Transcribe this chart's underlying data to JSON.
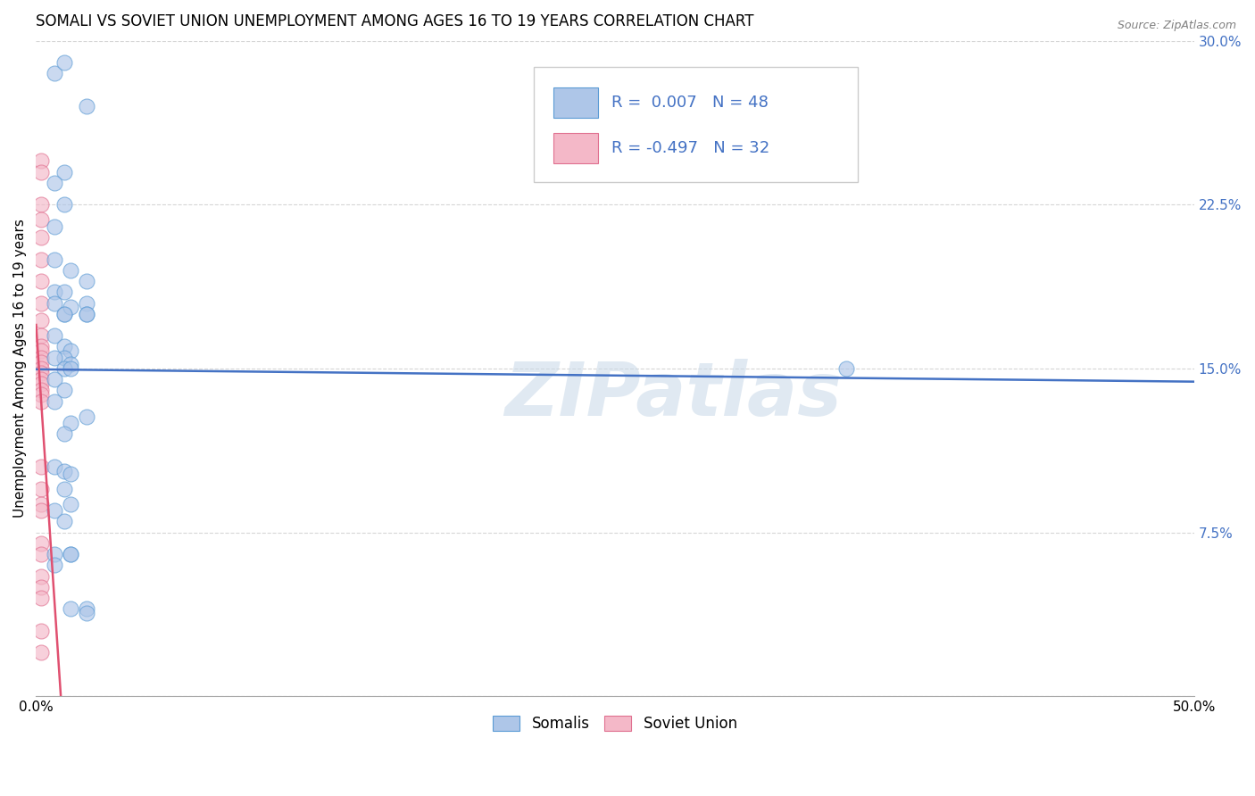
{
  "title": "SOMALI VS SOVIET UNION UNEMPLOYMENT AMONG AGES 16 TO 19 YEARS CORRELATION CHART",
  "source": "Source: ZipAtlas.com",
  "ylabel": "Unemployment Among Ages 16 to 19 years",
  "xlim": [
    0.0,
    0.5
  ],
  "ylim": [
    0.0,
    0.3
  ],
  "xticks": [
    0.0,
    0.1,
    0.2,
    0.3,
    0.4,
    0.5
  ],
  "xticklabels": [
    "0.0%",
    "",
    "",
    "",
    "",
    "50.0%"
  ],
  "yticks_left": [
    0.0,
    0.075,
    0.15,
    0.225,
    0.3
  ],
  "yticklabels_left": [
    "",
    "",
    "",
    "",
    ""
  ],
  "yticks_right": [
    0.075,
    0.15,
    0.225,
    0.3
  ],
  "yticklabels_right": [
    "7.5%",
    "15.0%",
    "22.5%",
    "30.0%"
  ],
  "somali_color": "#aec6e8",
  "somali_edge_color": "#5b9bd5",
  "soviet_color": "#f4b8c8",
  "soviet_edge_color": "#e07090",
  "trend_somali_color": "#4472c4",
  "trend_soviet_color": "#e05070",
  "watermark": "ZIPatlas",
  "somali_x": [
    0.008,
    0.012,
    0.022,
    0.012,
    0.008,
    0.008,
    0.012,
    0.008,
    0.015,
    0.022,
    0.008,
    0.012,
    0.022,
    0.008,
    0.012,
    0.015,
    0.012,
    0.022,
    0.008,
    0.012,
    0.015,
    0.012,
    0.015,
    0.022,
    0.008,
    0.012,
    0.015,
    0.008,
    0.012,
    0.008,
    0.015,
    0.012,
    0.008,
    0.012,
    0.015,
    0.022,
    0.012,
    0.015,
    0.008,
    0.012,
    0.008,
    0.015,
    0.022,
    0.015,
    0.022,
    0.008,
    0.35,
    0.015
  ],
  "somali_y": [
    0.285,
    0.29,
    0.27,
    0.24,
    0.235,
    0.215,
    0.225,
    0.2,
    0.195,
    0.19,
    0.185,
    0.185,
    0.18,
    0.18,
    0.175,
    0.178,
    0.175,
    0.175,
    0.165,
    0.16,
    0.158,
    0.155,
    0.152,
    0.175,
    0.155,
    0.15,
    0.15,
    0.145,
    0.14,
    0.135,
    0.125,
    0.12,
    0.105,
    0.103,
    0.102,
    0.128,
    0.095,
    0.088,
    0.085,
    0.08,
    0.065,
    0.065,
    0.04,
    0.04,
    0.038,
    0.06,
    0.15,
    0.065
  ],
  "soviet_x": [
    0.002,
    0.002,
    0.002,
    0.002,
    0.002,
    0.002,
    0.002,
    0.002,
    0.002,
    0.002,
    0.002,
    0.002,
    0.002,
    0.002,
    0.002,
    0.002,
    0.002,
    0.002,
    0.002,
    0.002,
    0.002,
    0.002,
    0.002,
    0.002,
    0.002,
    0.002,
    0.002,
    0.002,
    0.002,
    0.002,
    0.002,
    0.002
  ],
  "soviet_y": [
    0.245,
    0.24,
    0.225,
    0.218,
    0.21,
    0.2,
    0.19,
    0.18,
    0.172,
    0.165,
    0.16,
    0.158,
    0.155,
    0.153,
    0.15,
    0.148,
    0.145,
    0.143,
    0.14,
    0.138,
    0.135,
    0.105,
    0.095,
    0.088,
    0.085,
    0.07,
    0.065,
    0.055,
    0.05,
    0.045,
    0.03,
    0.02
  ],
  "soviet_trend_x0": 0.0,
  "soviet_trend_y0": 0.17,
  "soviet_trend_x1": 0.011,
  "soviet_trend_y1": -0.005,
  "background_color": "#ffffff",
  "grid_color": "#cccccc",
  "title_fontsize": 12,
  "axis_label_fontsize": 11,
  "tick_fontsize": 11,
  "marker_size": 150,
  "marker_alpha": 0.65,
  "legend_box_text_color": "#4472c4",
  "legend_box_label_color": "#333333"
}
